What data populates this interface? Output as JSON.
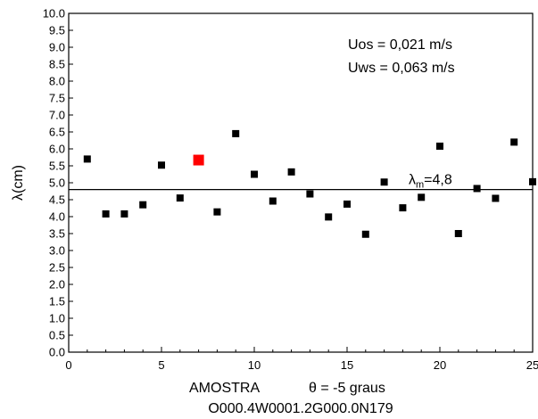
{
  "chart_data": {
    "type": "scatter",
    "xlabel": "AMOSTRA",
    "xlabel_note": "θ = -5 graus",
    "subtitle": "O000.4W0001.2G000.0N179",
    "ylabel": "λ(cm)",
    "xlim": [
      0,
      25
    ],
    "ylim": [
      0,
      10
    ],
    "x_ticks": [
      0,
      5,
      10,
      15,
      20,
      25
    ],
    "y_ticks": [
      "0.0",
      "0.5",
      "1.0",
      "1.5",
      "2.0",
      "2.5",
      "3.0",
      "3.5",
      "4.0",
      "4.5",
      "5.0",
      "5.5",
      "6.0",
      "6.5",
      "7.0",
      "7.5",
      "8.0",
      "8.5",
      "9.0",
      "9.5",
      "10.0"
    ],
    "grid": false,
    "series": [
      {
        "marker_color": "#000000",
        "points": [
          {
            "x": 1,
            "y": 5.7
          },
          {
            "x": 2,
            "y": 4.08
          },
          {
            "x": 3,
            "y": 4.08
          },
          {
            "x": 4,
            "y": 4.35
          },
          {
            "x": 5,
            "y": 5.52
          },
          {
            "x": 6,
            "y": 4.55
          },
          {
            "x": 8,
            "y": 4.14
          },
          {
            "x": 9,
            "y": 6.45
          },
          {
            "x": 10,
            "y": 5.25
          },
          {
            "x": 11,
            "y": 4.46
          },
          {
            "x": 12,
            "y": 5.32
          },
          {
            "x": 13,
            "y": 4.67
          },
          {
            "x": 14,
            "y": 3.99
          },
          {
            "x": 15,
            "y": 4.37
          },
          {
            "x": 16,
            "y": 3.48
          },
          {
            "x": 17,
            "y": 5.02
          },
          {
            "x": 18,
            "y": 4.26
          },
          {
            "x": 19,
            "y": 4.57
          },
          {
            "x": 20,
            "y": 6.08
          },
          {
            "x": 21,
            "y": 3.5
          },
          {
            "x": 22,
            "y": 4.83
          },
          {
            "x": 23,
            "y": 4.54
          },
          {
            "x": 24,
            "y": 6.2
          },
          {
            "x": 25,
            "y": 5.03
          }
        ]
      },
      {
        "marker_color": "#ff0000",
        "points": [
          {
            "x": 7,
            "y": 5.67
          }
        ]
      }
    ],
    "reference_line": {
      "y": 4.8,
      "label_main": "λ",
      "label_sub": "m",
      "label_value": "=4,8"
    },
    "annotations": [
      {
        "text": "Uos = 0,021 m/s"
      },
      {
        "text": "Uws = 0,063 m/s"
      }
    ]
  }
}
